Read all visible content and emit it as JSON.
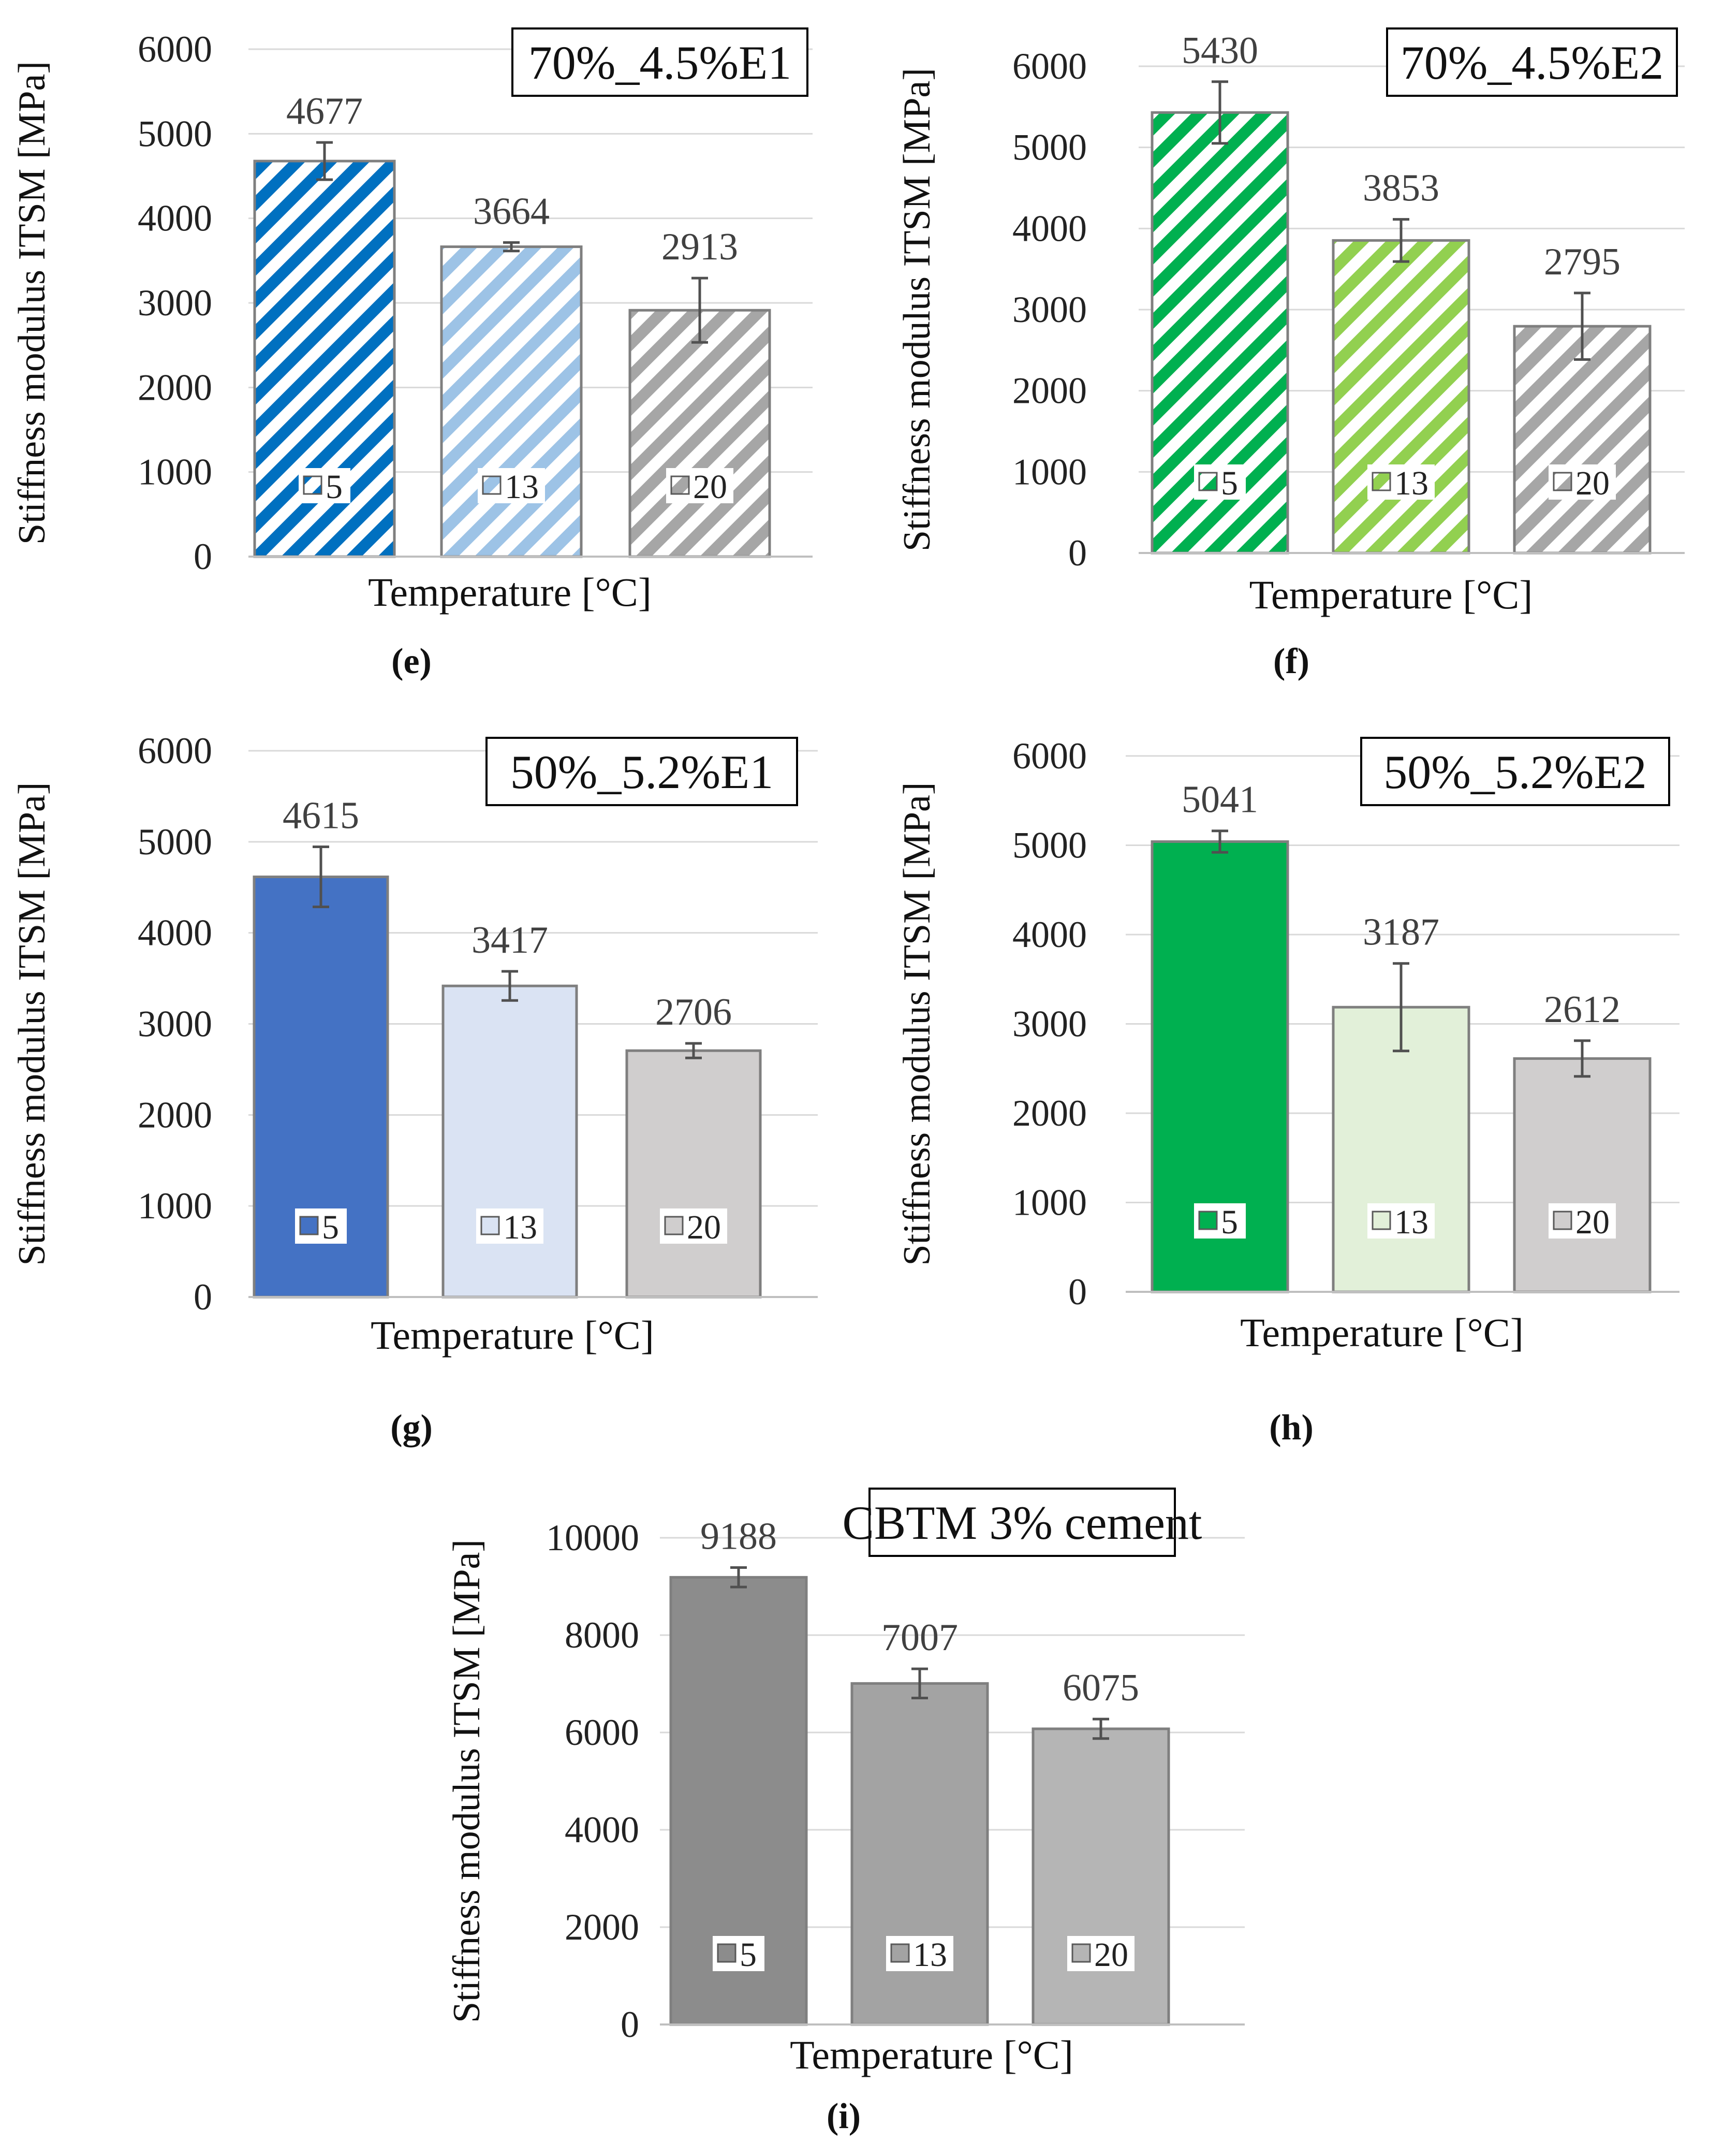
{
  "chart_data": [
    {
      "type": "bar",
      "label": "(e)",
      "title": "70%_4.5%E1",
      "xlabel": "Temperature [°C]",
      "ylabel": "Stiffness modulus ITSM [MPa]",
      "ylim": [
        0,
        6000
      ],
      "yticks": [
        0,
        1000,
        2000,
        3000,
        4000,
        5000,
        6000
      ],
      "grid": true,
      "legend": "inside-bars",
      "style": "hatched",
      "categories": [
        "5",
        "13",
        "20"
      ],
      "values": [
        4677,
        3664,
        2913
      ],
      "errors": [
        220,
        50,
        380
      ],
      "colors": [
        "#0070c0",
        "#9dc3e6",
        "#a6a6a6"
      ]
    },
    {
      "type": "bar",
      "label": "(f)",
      "title": "70%_4.5%E2",
      "xlabel": "Temperature [°C]",
      "ylabel": "Stiffness modulus ITSM [MPa]",
      "ylim": [
        0,
        6000
      ],
      "yticks": [
        0,
        1000,
        2000,
        3000,
        4000,
        5000,
        6000
      ],
      "grid": true,
      "legend": "inside-bars",
      "style": "hatched",
      "categories": [
        "5",
        "13",
        "20"
      ],
      "values": [
        5430,
        3853,
        2795
      ],
      "errors": [
        380,
        260,
        410
      ],
      "colors": [
        "#00b050",
        "#92d050",
        "#a6a6a6"
      ]
    },
    {
      "type": "bar",
      "label": "(g)",
      "title": "50%_5.2%E1",
      "xlabel": "Temperature [°C]",
      "ylabel": "Stiffness modulus ITSM [MPa]",
      "ylim": [
        0,
        6000
      ],
      "yticks": [
        0,
        1000,
        2000,
        3000,
        4000,
        5000,
        6000
      ],
      "grid": true,
      "legend": "inside-bars",
      "style": "solid",
      "categories": [
        "5",
        "13",
        "20"
      ],
      "values": [
        4615,
        3417,
        2706
      ],
      "errors": [
        330,
        160,
        80
      ],
      "colors": [
        "#4472c4",
        "#dae3f3",
        "#d0cece"
      ]
    },
    {
      "type": "bar",
      "label": "(h)",
      "title": "50%_5.2%E2",
      "xlabel": "Temperature [°C]",
      "ylabel": "Stiffness modulus ITSM [MPa]",
      "ylim": [
        0,
        6000
      ],
      "yticks": [
        0,
        1000,
        2000,
        3000,
        4000,
        5000,
        6000
      ],
      "grid": true,
      "legend": "inside-bars",
      "style": "solid",
      "categories": [
        "5",
        "13",
        "20"
      ],
      "values": [
        5041,
        3187,
        2612
      ],
      "errors": [
        120,
        490,
        200
      ],
      "colors": [
        "#00b050",
        "#e2f0d9",
        "#d0cece"
      ]
    },
    {
      "type": "bar",
      "label": "(i)",
      "title": "CBTM 3% cement",
      "xlabel": "Temperature [°C]",
      "ylabel": "Stiffness modulus ITSM [MPa]",
      "ylim": [
        0,
        10000
      ],
      "yticks": [
        0,
        2000,
        4000,
        6000,
        8000,
        10000
      ],
      "grid": true,
      "legend": "inside-bars",
      "style": "solid",
      "categories": [
        "5",
        "13",
        "20"
      ],
      "values": [
        9188,
        7007,
        6075
      ],
      "errors": [
        200,
        300,
        200
      ],
      "colors": [
        "#8c8c8c",
        "#a3a3a3",
        "#b5b5b5"
      ]
    }
  ]
}
